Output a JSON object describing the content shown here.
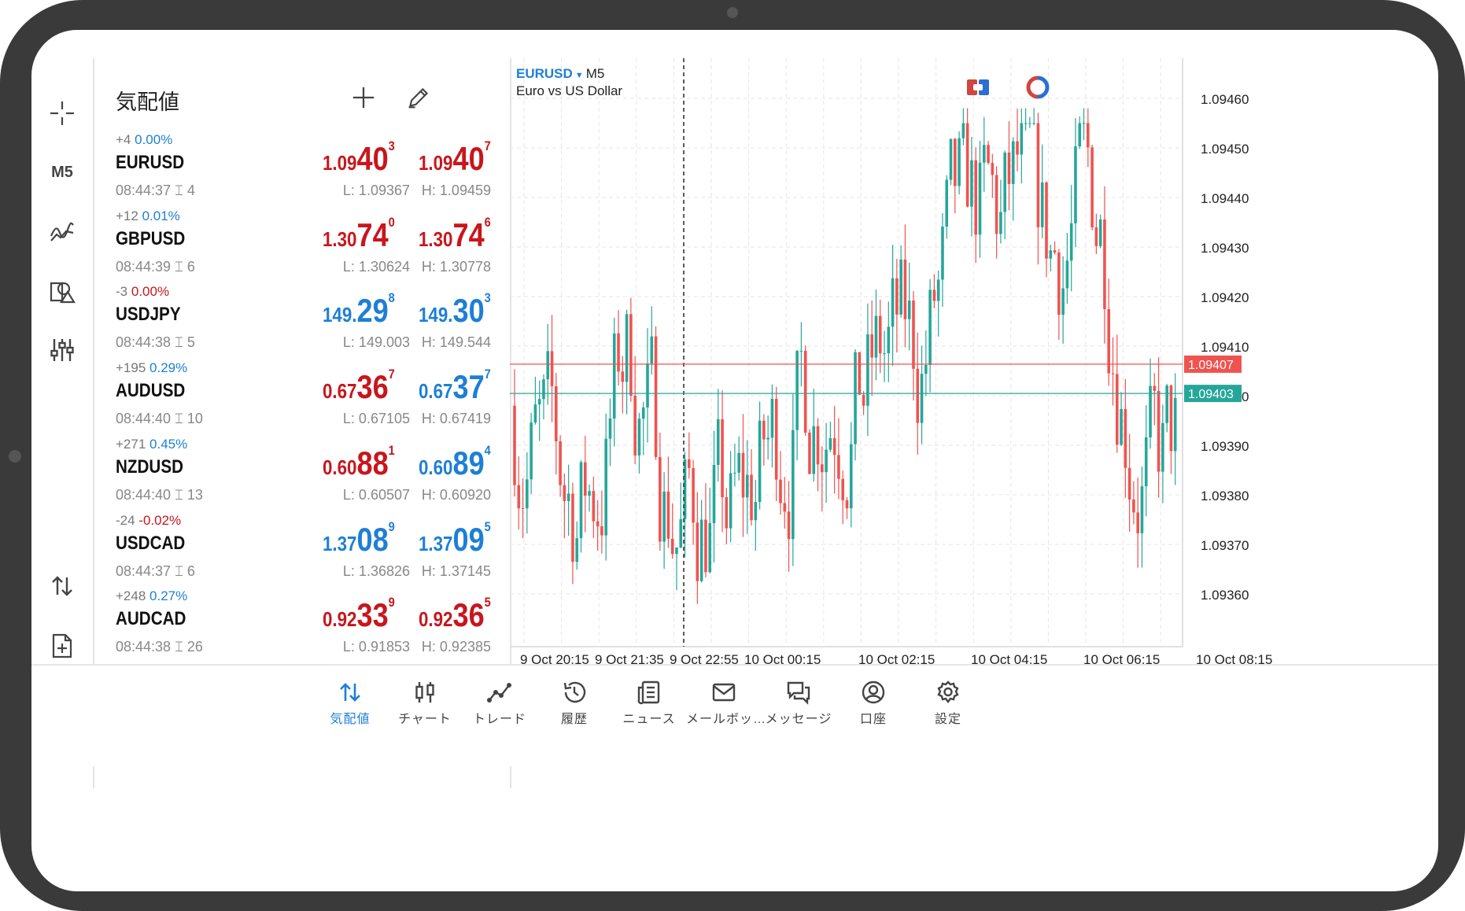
{
  "quotes_panel": {
    "title": "気配値",
    "add_icon": "plus-icon",
    "edit_icon": "pencil-icon",
    "rows": [
      {
        "symbol": "EURUSD",
        "change_pts": "+4",
        "change_pct": "0.00%",
        "pct_color": "#1e7fd6",
        "time": "08:44:37",
        "spread": "4",
        "bid": {
          "pre": "1.09",
          "big": "40",
          "sup": "3",
          "color": "#c8161d"
        },
        "ask": {
          "pre": "1.09",
          "big": "40",
          "sup": "7",
          "color": "#c8161d"
        },
        "low": "L: 1.09367",
        "high": "H: 1.09459"
      },
      {
        "symbol": "GBPUSD",
        "change_pts": "+12",
        "change_pct": "0.01%",
        "pct_color": "#1e7fd6",
        "time": "08:44:39",
        "spread": "6",
        "bid": {
          "pre": "1.30",
          "big": "74",
          "sup": "0",
          "color": "#c8161d"
        },
        "ask": {
          "pre": "1.30",
          "big": "74",
          "sup": "6",
          "color": "#c8161d"
        },
        "low": "L: 1.30624",
        "high": "H: 1.30778"
      },
      {
        "symbol": "USDJPY",
        "change_pts": "-3",
        "change_pct": "0.00%",
        "pct_color": "#c8161d",
        "time": "08:44:38",
        "spread": "5",
        "bid": {
          "pre": "149.",
          "big": "29",
          "sup": "8",
          "color": "#1e7fd6"
        },
        "ask": {
          "pre": "149.",
          "big": "30",
          "sup": "3",
          "color": "#1e7fd6"
        },
        "low": "L: 149.003",
        "high": "H: 149.544"
      },
      {
        "symbol": "AUDUSD",
        "change_pts": "+195",
        "change_pct": "0.29%",
        "pct_color": "#1e7fd6",
        "time": "08:44:40",
        "spread": "10",
        "bid": {
          "pre": "0.67",
          "big": "36",
          "sup": "7",
          "color": "#c8161d"
        },
        "ask": {
          "pre": "0.67",
          "big": "37",
          "sup": "7",
          "color": "#1e7fd6"
        },
        "low": "L: 0.67105",
        "high": "H: 0.67419"
      },
      {
        "symbol": "NZDUSD",
        "change_pts": "+271",
        "change_pct": "0.45%",
        "pct_color": "#1e7fd6",
        "time": "08:44:40",
        "spread": "13",
        "bid": {
          "pre": "0.60",
          "big": "88",
          "sup": "1",
          "color": "#c8161d"
        },
        "ask": {
          "pre": "0.60",
          "big": "89",
          "sup": "4",
          "color": "#1e7fd6"
        },
        "low": "L: 0.60507",
        "high": "H: 0.60920"
      },
      {
        "symbol": "USDCAD",
        "change_pts": "-24",
        "change_pct": "-0.02%",
        "pct_color": "#c8161d",
        "time": "08:44:37",
        "spread": "6",
        "bid": {
          "pre": "1.37",
          "big": "08",
          "sup": "9",
          "color": "#1e7fd6"
        },
        "ask": {
          "pre": "1.37",
          "big": "09",
          "sup": "5",
          "color": "#1e7fd6"
        },
        "low": "L: 1.36826",
        "high": "H: 1.37145"
      },
      {
        "symbol": "AUDCAD",
        "change_pts": "+248",
        "change_pct": "0.27%",
        "pct_color": "#1e7fd6",
        "time": "08:44:38",
        "spread": "26",
        "bid": {
          "pre": "0.92",
          "big": "33",
          "sup": "9",
          "color": "#c8161d"
        },
        "ask": {
          "pre": "0.92",
          "big": "36",
          "sup": "5",
          "color": "#c8161d"
        },
        "low": "L: 0.91853",
        "high": "H: 0.92385"
      }
    ]
  },
  "left_rail": {
    "timeframe": "M5",
    "icons": [
      "crosshair-icon",
      "indicators-icon",
      "objects-icon",
      "settings-sliders-icon",
      "swap-icon",
      "new-order-icon"
    ]
  },
  "chart": {
    "symbol": "EURUSD",
    "timeframe": "M5",
    "description": "Euro vs US Dollar",
    "bid_line": "1.09403",
    "ask_line": "1.09407",
    "bid_color": "#26a69a",
    "ask_color": "#ef5350"
  },
  "chart_data": {
    "type": "candlestick",
    "symbol": "EURUSD",
    "timeframe": "M5",
    "ylim": [
      1.09355,
      1.0947
    ],
    "y_ticks": [
      "1.09460",
      "1.09450",
      "1.09440",
      "1.09430",
      "1.09420",
      "1.09410",
      "1.09400",
      "1.09390",
      "1.09380",
      "1.09370",
      "1.09360"
    ],
    "x_ticks": [
      "9 Oct 20:15",
      "9 Oct 21:35",
      "9 Oct 22:55",
      "10 Oct 00:15",
      "10 Oct 02:15",
      "10 Oct 04:15",
      "10 Oct 06:15",
      "10 Oct 08:15"
    ],
    "current_bid": 1.09403,
    "current_ask": 1.09407,
    "up_color": "#26a69a",
    "down_color": "#ef5350"
  },
  "bottom_nav": {
    "items": [
      {
        "label": "気配値",
        "icon": "quotes-icon",
        "active": true
      },
      {
        "label": "チャート",
        "icon": "chart-icon",
        "active": false
      },
      {
        "label": "トレード",
        "icon": "trade-icon",
        "active": false
      },
      {
        "label": "履歴",
        "icon": "history-icon",
        "active": false
      },
      {
        "label": "ニュース",
        "icon": "news-icon",
        "active": false
      },
      {
        "label": "メールボッ…",
        "icon": "mail-icon",
        "active": false
      },
      {
        "label": "メッセージ",
        "icon": "messages-icon",
        "active": false
      },
      {
        "label": "口座",
        "icon": "account-icon",
        "active": false
      },
      {
        "label": "設定",
        "icon": "settings-icon",
        "active": false
      }
    ]
  }
}
